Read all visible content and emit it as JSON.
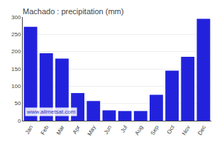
{
  "chart_data": {
    "type": "bar",
    "title": "Machado : precipitation (mm)",
    "categories": [
      "Jan",
      "Feb",
      "Mar",
      "Apr",
      "May",
      "Jun",
      "Jul",
      "Aug",
      "Sep",
      "Oct",
      "Nov",
      "Dec"
    ],
    "values": [
      272,
      195,
      180,
      80,
      57,
      30,
      28,
      28,
      75,
      145,
      185,
      295
    ],
    "color": "#2222dd",
    "ylim": [
      0,
      300
    ],
    "yticks": [
      0,
      50,
      100,
      150,
      200,
      250,
      300
    ],
    "grid": true,
    "annotations": [
      {
        "text": "www.allmetsat.com",
        "color": "#3333bb"
      }
    ]
  }
}
